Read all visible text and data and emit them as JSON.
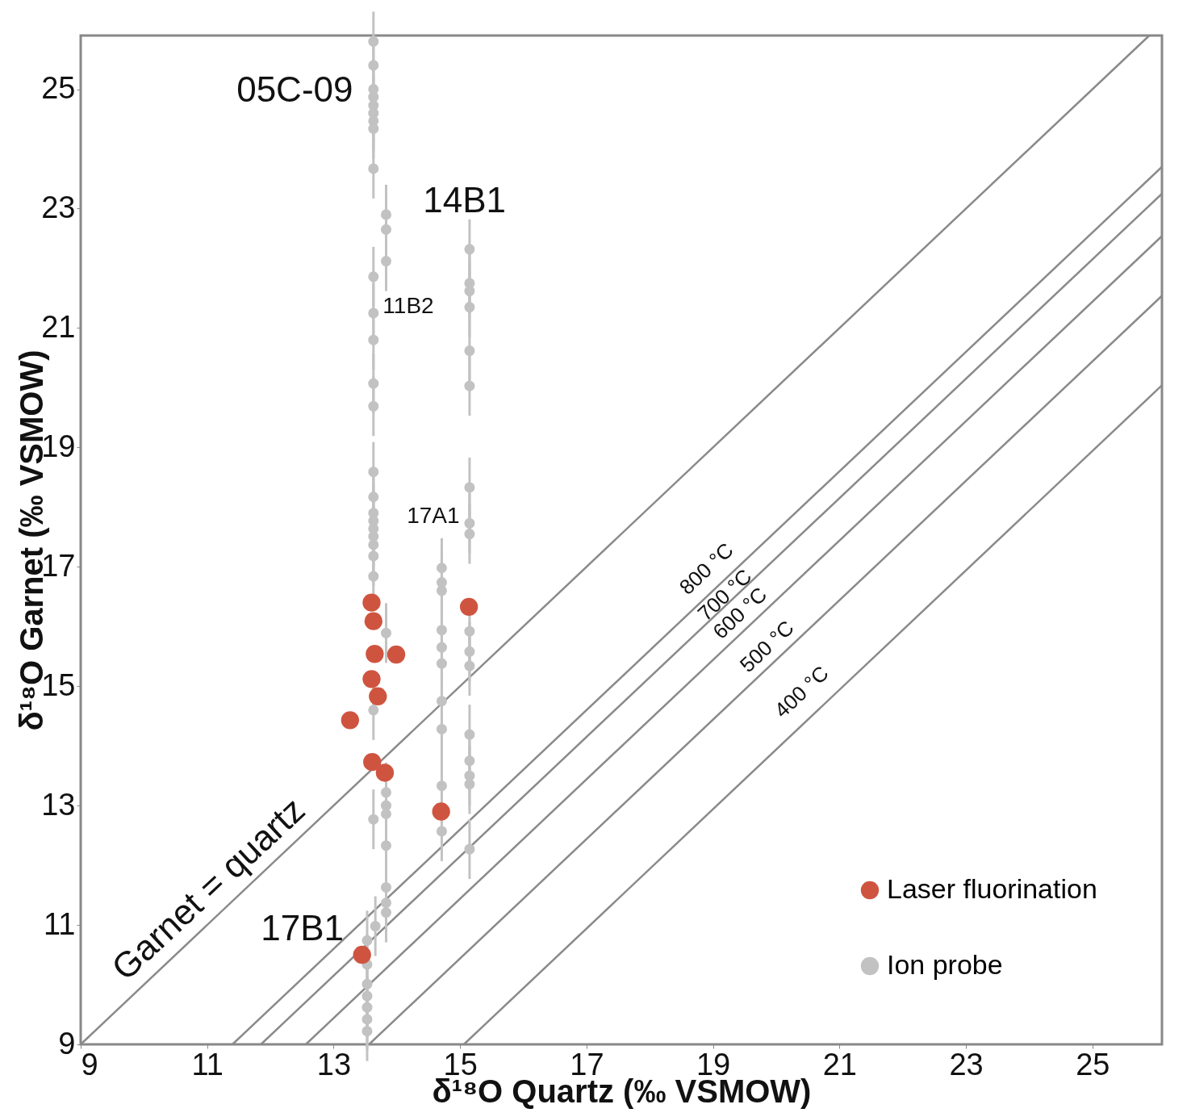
{
  "chart_data": {
    "type": "scatter",
    "xlabel": "δ¹⁸O Quartz (‰ VSMOW)",
    "ylabel": "δ¹⁸O Garnet (‰ VSMOW)",
    "xlim": [
      9,
      26.1
    ],
    "ylim": [
      9,
      25.9
    ],
    "xticks": [
      9,
      11,
      13,
      15,
      17,
      19,
      21,
      23,
      25
    ],
    "yticks": [
      9,
      11,
      13,
      15,
      17,
      19,
      21,
      23,
      25
    ],
    "grid": false,
    "legend": "bottom right",
    "series": [
      {
        "type": "line",
        "color": "#8a8a8a",
        "x": [
          9,
          25.9
        ],
        "values": [
          9,
          25.9
        ]
      },
      {
        "type": "line",
        "color": "#8a8a8a",
        "x": [
          11.4,
          26.1
        ],
        "values": [
          9,
          23.7
        ]
      },
      {
        "type": "line",
        "color": "#8a8a8a",
        "x": [
          11.85,
          26.1
        ],
        "values": [
          9,
          23.25
        ]
      },
      {
        "type": "line",
        "color": "#8a8a8a",
        "x": [
          12.56,
          26.1
        ],
        "values": [
          9,
          22.54
        ]
      },
      {
        "type": "line",
        "color": "#8a8a8a",
        "x": [
          13.56,
          26.1
        ],
        "values": [
          9,
          21.54
        ]
      },
      {
        "type": "line",
        "color": "#8a8a8a",
        "x": [
          15.06,
          26.1
        ],
        "values": [
          9,
          20.04
        ]
      },
      {
        "name": "Laser fluorination",
        "color": "#cf5440",
        "marker": "circle",
        "x": [
          13.6,
          13.63,
          13.65,
          13.99,
          13.6,
          13.7,
          13.26,
          13.61,
          13.81,
          14.7,
          15.14,
          13.45
        ],
        "values": [
          16.4,
          16.09,
          15.54,
          15.53,
          15.12,
          14.83,
          14.43,
          13.73,
          13.55,
          12.9,
          16.33,
          10.5
        ]
      },
      {
        "name": "Ion probe",
        "color": "#c2c2c2",
        "marker": "circle",
        "x": [
          13.63,
          13.63,
          13.63,
          13.63,
          13.63,
          13.63,
          13.63,
          13.63,
          13.63,
          13.63,
          13.63,
          13.63,
          13.63,
          13.63,
          13.63,
          13.63,
          13.63,
          13.63,
          13.63,
          13.63,
          13.63,
          13.63,
          13.63,
          13.63,
          13.63,
          13.83,
          13.83,
          13.83,
          13.83,
          13.83,
          13.83,
          13.83,
          13.83,
          13.83,
          13.83,
          13.83,
          15.15,
          15.15,
          15.15,
          15.15,
          15.15,
          15.15,
          15.15,
          15.15,
          15.15,
          15.15,
          15.15,
          15.15,
          15.15,
          15.15,
          15.15,
          15.15,
          15.15,
          14.71,
          14.71,
          14.71,
          14.71,
          14.71,
          14.71,
          14.71,
          14.71,
          14.71,
          14.71,
          13.66,
          13.53,
          13.53,
          13.53,
          13.53,
          13.53,
          13.53,
          13.53
        ],
        "values": [
          25.8,
          25.4,
          25.0,
          24.87,
          24.73,
          24.6,
          24.47,
          24.34,
          23.67,
          21.86,
          21.25,
          20.8,
          20.07,
          19.69,
          18.59,
          18.17,
          17.9,
          17.77,
          17.64,
          17.51,
          17.37,
          17.18,
          16.84,
          14.6,
          12.77,
          22.9,
          22.65,
          22.12,
          15.89,
          13.22,
          13.0,
          12.86,
          12.33,
          11.63,
          11.37,
          11.21,
          22.32,
          21.75,
          21.62,
          21.35,
          20.62,
          20.03,
          18.33,
          17.73,
          17.55,
          15.92,
          15.58,
          15.34,
          14.19,
          13.75,
          13.5,
          13.36,
          12.27,
          16.98,
          16.74,
          16.6,
          15.94,
          15.65,
          15.38,
          14.75,
          14.28,
          13.33,
          12.57,
          10.98,
          10.74,
          10.34,
          10.01,
          9.81,
          9.62,
          9.42,
          9.22
        ],
        "errors": [
          0.5,
          0.5,
          0.5,
          0.5,
          0.5,
          0.5,
          0.5,
          0.5,
          0.5,
          0.5,
          0.5,
          0.5,
          0.5,
          0.5,
          0.5,
          0.5,
          0.5,
          0.5,
          0.5,
          0.5,
          0.5,
          0.5,
          0.5,
          0.5,
          0.5,
          0.5,
          0.5,
          0.5,
          0.5,
          0.5,
          0.5,
          0.5,
          0.5,
          0.5,
          0.5,
          0.5,
          0.5,
          0.5,
          0.5,
          0.5,
          0.5,
          0.5,
          0.5,
          0.5,
          0.5,
          0.5,
          0.5,
          0.5,
          0.5,
          0.5,
          0.5,
          0.5,
          0.5,
          0.5,
          0.5,
          0.5,
          0.5,
          0.5,
          0.5,
          0.5,
          0.5,
          0.5,
          0.5,
          0.5,
          0.5,
          0.5,
          0.5,
          0.5,
          0.5,
          0.5,
          0.5
        ]
      }
    ],
    "annotations": [
      "05C-09",
      "14B1",
      "11B2",
      "17A1",
      "17B1",
      "Garnet = quartz",
      "800 °C",
      "700 °C",
      "600 °C",
      "500 °C",
      "400 °C"
    ]
  }
}
